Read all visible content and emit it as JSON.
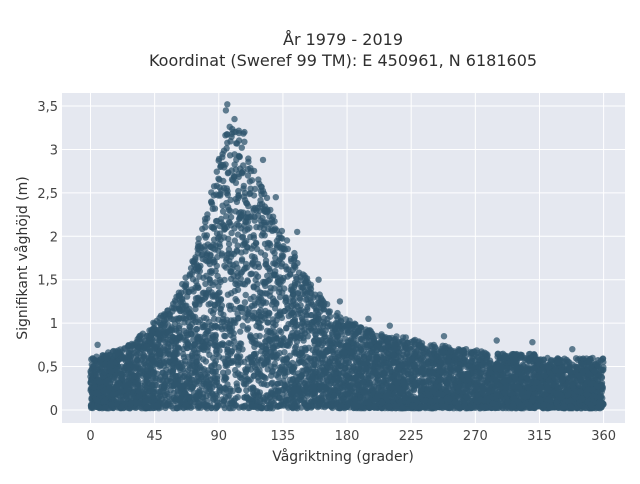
{
  "title_line1": "År 1979 - 2019",
  "title_line2": "Koordinat (Sweref 99 TM): E 450961, N 6181605",
  "chart_data": {
    "type": "scatter",
    "xlabel": "Vågriktning (grader)",
    "ylabel": "Signifikant våghöjd (m)",
    "xlim": [
      -20,
      375
    ],
    "ylim": [
      -0.15,
      3.65
    ],
    "x_ticks": [
      0,
      45,
      90,
      135,
      180,
      225,
      270,
      315,
      360
    ],
    "x_tick_labels": [
      "0",
      "45",
      "90",
      "135",
      "180",
      "225",
      "270",
      "315",
      "360"
    ],
    "y_ticks": [
      0,
      0.5,
      1,
      1.5,
      2,
      2.5,
      3,
      3.5
    ],
    "y_tick_labels": [
      "0",
      "0,5",
      "1",
      "1,5",
      "2",
      "2,5",
      "3",
      "3,5"
    ],
    "grid": true,
    "point_color": "#2f566e",
    "plot_bg": "#e5e8f0",
    "envelope": {
      "x": [
        0,
        10,
        20,
        30,
        40,
        50,
        60,
        70,
        80,
        90,
        95,
        100,
        105,
        110,
        115,
        120,
        130,
        140,
        150,
        160,
        170,
        180,
        190,
        200,
        210,
        220,
        230,
        240,
        250,
        260,
        270,
        280,
        290,
        300,
        310,
        320,
        330,
        340,
        350,
        360
      ],
      "y": [
        0.6,
        0.65,
        0.7,
        0.8,
        0.95,
        1.1,
        1.3,
        1.65,
        2.2,
        2.9,
        3.2,
        3.35,
        3.25,
        3.1,
        2.9,
        2.6,
        2.2,
        1.9,
        1.6,
        1.35,
        1.15,
        1.05,
        0.95,
        0.9,
        0.85,
        0.85,
        0.8,
        0.75,
        0.75,
        0.7,
        0.7,
        0.65,
        0.65,
        0.65,
        0.65,
        0.6,
        0.6,
        0.6,
        0.6,
        0.6
      ]
    },
    "outliers": [
      {
        "x": 96,
        "y": 3.52
      },
      {
        "x": 95,
        "y": 3.45
      },
      {
        "x": 101,
        "y": 3.35
      },
      {
        "x": 108,
        "y": 3.2
      },
      {
        "x": 121,
        "y": 2.88
      },
      {
        "x": 130,
        "y": 2.45
      },
      {
        "x": 145,
        "y": 2.05
      },
      {
        "x": 160,
        "y": 1.5
      },
      {
        "x": 175,
        "y": 1.25
      },
      {
        "x": 195,
        "y": 1.05
      },
      {
        "x": 210,
        "y": 0.97
      },
      {
        "x": 248,
        "y": 0.85
      },
      {
        "x": 285,
        "y": 0.8
      },
      {
        "x": 310,
        "y": 0.78
      },
      {
        "x": 5,
        "y": 0.75
      },
      {
        "x": 338,
        "y": 0.7
      },
      {
        "x": 62,
        "y": 1.35
      }
    ]
  }
}
